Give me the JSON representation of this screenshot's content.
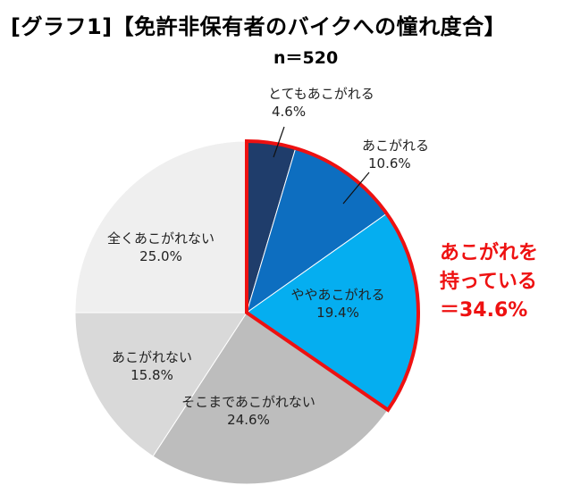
{
  "title": "[グラフ1]【免許非保有者のバイクへの憧れ度合】",
  "sample": "n＝520",
  "callout": {
    "line1": "あこがれを",
    "line2": "持っている",
    "line3": "＝34.6%"
  },
  "colors": {
    "highlight": "#ee1111"
  },
  "chart_data": {
    "type": "pie",
    "title": "[グラフ1]【免許非保有者のバイクへの憧れ度合】",
    "start": "12 o'clock",
    "direction": "clockwise",
    "slices": [
      {
        "label": "とてもあこがれる",
        "value": 4.6,
        "display": "4.6%",
        "color": "#1f3d6b"
      },
      {
        "label": "あこがれる",
        "value": 10.6,
        "display": "10.6%",
        "color": "#0d6ec0"
      },
      {
        "label": "ややあこがれる",
        "value": 19.4,
        "display": "19.4%",
        "color": "#05aef0"
      },
      {
        "label": "そこまであこがれない",
        "value": 24.6,
        "display": "24.6%",
        "color": "#bdbdbd"
      },
      {
        "label": "あこがれない",
        "value": 15.8,
        "display": "15.8%",
        "color": "#d9d9d9"
      },
      {
        "label": "全くあこがれない",
        "value": 25.0,
        "display": "25.0%",
        "color": "#efefef"
      }
    ],
    "highlighted": [
      "とてもあこがれる",
      "あこがれる",
      "ややあこがれる"
    ]
  }
}
